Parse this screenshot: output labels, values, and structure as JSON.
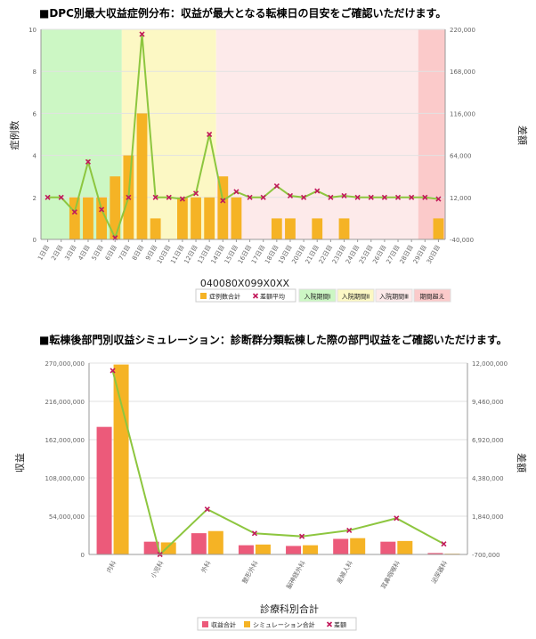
{
  "chart_data": [
    {
      "type": "bar",
      "title": "■DPC別最大収益症例分布：収益が最大となる転棟日の目安をご確認いただけます。",
      "xlabel": "040080X099X0XX",
      "ylabel": "症例数",
      "y2label": "差額",
      "categories": [
        "1日目",
        "2日目",
        "3日目",
        "4日目",
        "5日目",
        "6日目",
        "7日目",
        "8日目",
        "9日目",
        "10日目",
        "11日目",
        "12日目",
        "13日目",
        "14日目",
        "15日目",
        "16日目",
        "17日目",
        "18日目",
        "19日目",
        "20日目",
        "21日目",
        "22日目",
        "23日目",
        "24日目",
        "25日目",
        "26日目",
        "27日目",
        "28日目",
        "29日目",
        "30日目"
      ],
      "ylim": [
        0,
        10
      ],
      "yticks": [
        0,
        2,
        4,
        6,
        8,
        10
      ],
      "y2lim": [
        -40000,
        220000
      ],
      "y2ticks": [
        "-40,000",
        "12,000",
        "64,000",
        "116,000",
        "168,000",
        "220,000"
      ],
      "series": [
        {
          "name": "症例数合計",
          "axis": "left",
          "kind": "bar",
          "color": "#f5b325",
          "values": [
            0,
            0,
            2,
            2,
            2,
            3,
            4,
            6,
            1,
            0,
            2,
            2,
            2,
            3,
            2,
            0,
            0,
            1,
            1,
            0,
            1,
            0,
            1,
            0,
            0,
            0,
            0,
            0,
            0,
            1
          ]
        },
        {
          "name": "差額平均",
          "axis": "right",
          "kind": "line",
          "color": "#8dc63f",
          "marker_color": "#c2185b",
          "values": [
            12000,
            12000,
            -6000,
            56000,
            -3000,
            -38000,
            12000,
            214000,
            12000,
            12000,
            10000,
            17000,
            90000,
            8000,
            19000,
            12000,
            12000,
            26000,
            14000,
            12000,
            20000,
            12000,
            14000,
            12000,
            12000,
            12000,
            12000,
            12000,
            12000,
            10000
          ]
        }
      ],
      "bands": [
        {
          "label": "入院期間Ⅰ",
          "from": 1,
          "to": 7,
          "color": "#ccf7c4"
        },
        {
          "label": "入院期間Ⅱ",
          "from": 7,
          "to": 14,
          "color": "#fcf8c4"
        },
        {
          "label": "入院期間Ⅲ",
          "from": 14,
          "to": 29,
          "color": "#fdeaea"
        },
        {
          "label": "期間超え",
          "from": 29,
          "to": 31,
          "color": "#fbcaca"
        }
      ],
      "legend_position": "bottom"
    },
    {
      "type": "bar",
      "title": "■転棟後部門別収益シミュレーション：診断群分類転棟した際の部門収益をご確認いただけます。",
      "xlabel": "診療科別合計",
      "ylabel": "収益",
      "y2label": "差額",
      "categories": [
        "内科",
        "小児科",
        "外科",
        "整形外科",
        "脳神経外科",
        "産婦人科",
        "耳鼻咽喉科",
        "泌尿器科"
      ],
      "ylim": [
        0,
        270000000
      ],
      "yticks": [
        "0",
        "54,000,000",
        "108,000,000",
        "162,000,000",
        "216,000,000",
        "270,000,000"
      ],
      "y2lim": [
        -700000,
        12000000
      ],
      "y2ticks": [
        "-700,000",
        "1,840,000",
        "4,380,000",
        "6,920,000",
        "9,460,000",
        "12,000,000"
      ],
      "series": [
        {
          "name": "収益合計",
          "axis": "left",
          "kind": "bar",
          "color": "#ec5a7a",
          "values": [
            180000000,
            18000000,
            30000000,
            13000000,
            12000000,
            22000000,
            18000000,
            2000000
          ]
        },
        {
          "name": "シミュレーション合計",
          "axis": "left",
          "kind": "bar",
          "color": "#f5b325",
          "values": [
            268000000,
            17000000,
            33000000,
            14000000,
            13000000,
            23000000,
            19000000,
            1000000
          ]
        },
        {
          "name": "差額",
          "axis": "right",
          "kind": "line",
          "color": "#8dc63f",
          "marker_color": "#c2185b",
          "values": [
            11500000,
            -700000,
            2300000,
            700000,
            500000,
            900000,
            1700000,
            0
          ]
        }
      ],
      "legend_position": "bottom"
    }
  ]
}
